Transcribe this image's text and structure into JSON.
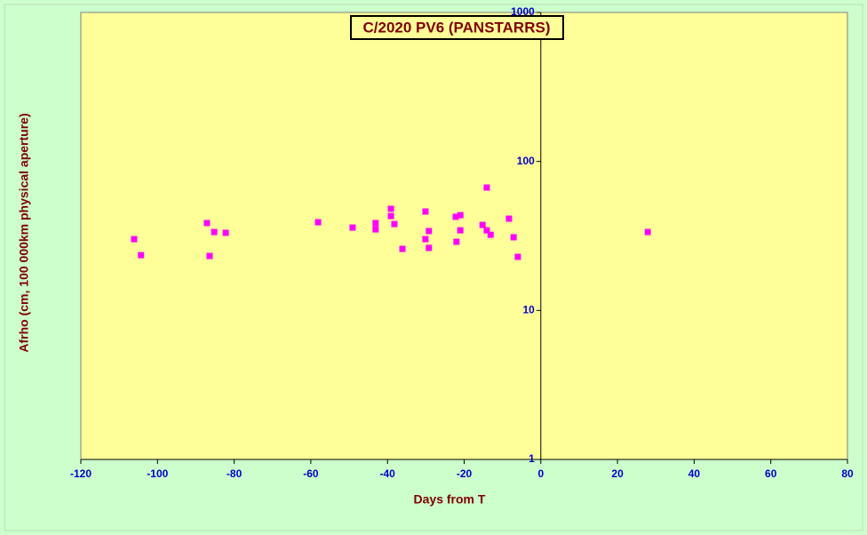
{
  "chart_data": {
    "type": "scatter",
    "title": "C/2020 PV6 (PANSTARRS)",
    "x_label": "Days from  T",
    "y_label": "Afrho (cm, 100 000km physical aperture)",
    "x": [
      -106.1,
      -104.3,
      -87.1,
      -86.4,
      -85.2,
      -82.2,
      -58.1,
      -49.1,
      -43.1,
      -43.1,
      -39.1,
      -39.1,
      -38.2,
      -36.1,
      -30.1,
      -30.1,
      -29.2,
      -29.2,
      -22.2,
      -22.0,
      -21.0,
      -21.0,
      -15.2,
      -14.1,
      -14.1,
      -13.1,
      -8.3,
      -7.1,
      -6.0,
      27.9
    ],
    "values": [
      30.1,
      23.5,
      38.6,
      23.2,
      33.6,
      33.2,
      39.1,
      36.0,
      38.6,
      35.0,
      48.1,
      43.0,
      38.0,
      25.9,
      46.1,
      30.1,
      34.1,
      26.3,
      42.5,
      28.9,
      43.6,
      34.5,
      37.5,
      66.8,
      34.5,
      32.2,
      41.3,
      31.0,
      22.9,
      33.6
    ],
    "color": "#ff00ff",
    "plot_background": "#ffff99",
    "xlim": [
      -120,
      80
    ],
    "xticks": [
      -120,
      -100,
      -80,
      -60,
      -40,
      -20,
      0,
      20,
      40,
      60,
      80
    ],
    "ylim": [
      1,
      1000
    ],
    "yticks": [
      1,
      10,
      100,
      1000
    ],
    "log_y": true
  }
}
